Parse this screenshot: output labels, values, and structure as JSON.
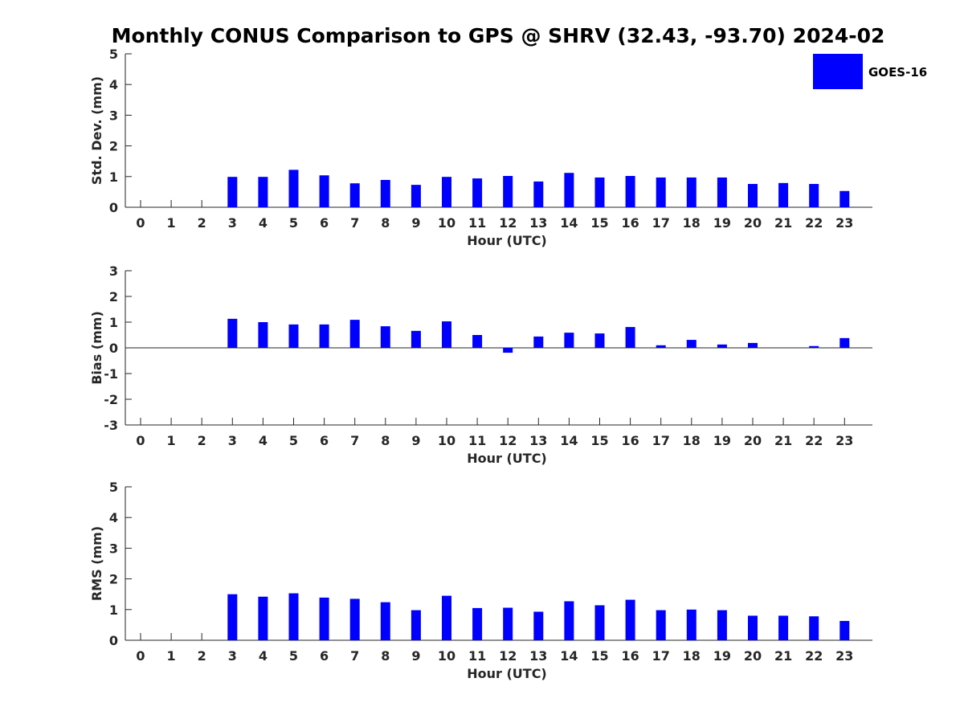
{
  "figure": {
    "title": "Monthly CONUS Comparison to GPS @ SHRV (32.43, -93.70) 2024-02",
    "legend": {
      "label": "GOES-16",
      "color": "#0000ff"
    }
  },
  "chart_data": [
    {
      "type": "bar",
      "title": "",
      "xlabel": "Hour (UTC)",
      "ylabel": "Std. Dev. (mm)",
      "categories": [
        "0",
        "1",
        "2",
        "3",
        "4",
        "5",
        "6",
        "7",
        "8",
        "9",
        "10",
        "11",
        "12",
        "13",
        "14",
        "15",
        "16",
        "17",
        "18",
        "19",
        "20",
        "21",
        "22",
        "23"
      ],
      "ylim": [
        0,
        5
      ],
      "yticks": [
        0,
        1,
        2,
        3,
        4,
        5
      ],
      "series": [
        {
          "name": "GOES-16",
          "color": "#0000ff",
          "values": [
            null,
            null,
            null,
            0.99,
            0.99,
            1.22,
            1.04,
            0.78,
            0.89,
            0.73,
            0.99,
            0.94,
            1.02,
            0.84,
            1.12,
            0.97,
            1.02,
            0.97,
            0.97,
            0.97,
            0.76,
            0.79,
            0.76,
            0.53
          ]
        }
      ]
    },
    {
      "type": "bar",
      "title": "",
      "xlabel": "Hour (UTC)",
      "ylabel": "Bias (mm)",
      "categories": [
        "0",
        "1",
        "2",
        "3",
        "4",
        "5",
        "6",
        "7",
        "8",
        "9",
        "10",
        "11",
        "12",
        "13",
        "14",
        "15",
        "16",
        "17",
        "18",
        "19",
        "20",
        "21",
        "22",
        "23"
      ],
      "ylim": [
        -3,
        3
      ],
      "yticks": [
        -3,
        -2,
        -1,
        0,
        1,
        2,
        3
      ],
      "series": [
        {
          "name": "GOES-16",
          "color": "#0000ff",
          "values": [
            null,
            null,
            null,
            1.13,
            1.0,
            0.91,
            0.91,
            1.09,
            0.84,
            0.66,
            1.03,
            0.5,
            -0.19,
            0.44,
            0.59,
            0.56,
            0.81,
            0.1,
            0.31,
            0.13,
            0.19,
            0.0,
            0.07,
            0.38
          ]
        }
      ]
    },
    {
      "type": "bar",
      "title": "",
      "xlabel": "Hour (UTC)",
      "ylabel": "RMS (mm)",
      "categories": [
        "0",
        "1",
        "2",
        "3",
        "4",
        "5",
        "6",
        "7",
        "8",
        "9",
        "10",
        "11",
        "12",
        "13",
        "14",
        "15",
        "16",
        "17",
        "18",
        "19",
        "20",
        "21",
        "22",
        "23"
      ],
      "ylim": [
        0,
        5
      ],
      "yticks": [
        0,
        1,
        2,
        3,
        4,
        5
      ],
      "series": [
        {
          "name": "GOES-16",
          "color": "#0000ff",
          "values": [
            null,
            null,
            null,
            1.5,
            1.42,
            1.53,
            1.39,
            1.35,
            1.24,
            0.98,
            1.45,
            1.05,
            1.06,
            0.93,
            1.27,
            1.14,
            1.32,
            0.98,
            1.0,
            0.98,
            0.8,
            0.8,
            0.78,
            0.63
          ]
        }
      ]
    }
  ]
}
